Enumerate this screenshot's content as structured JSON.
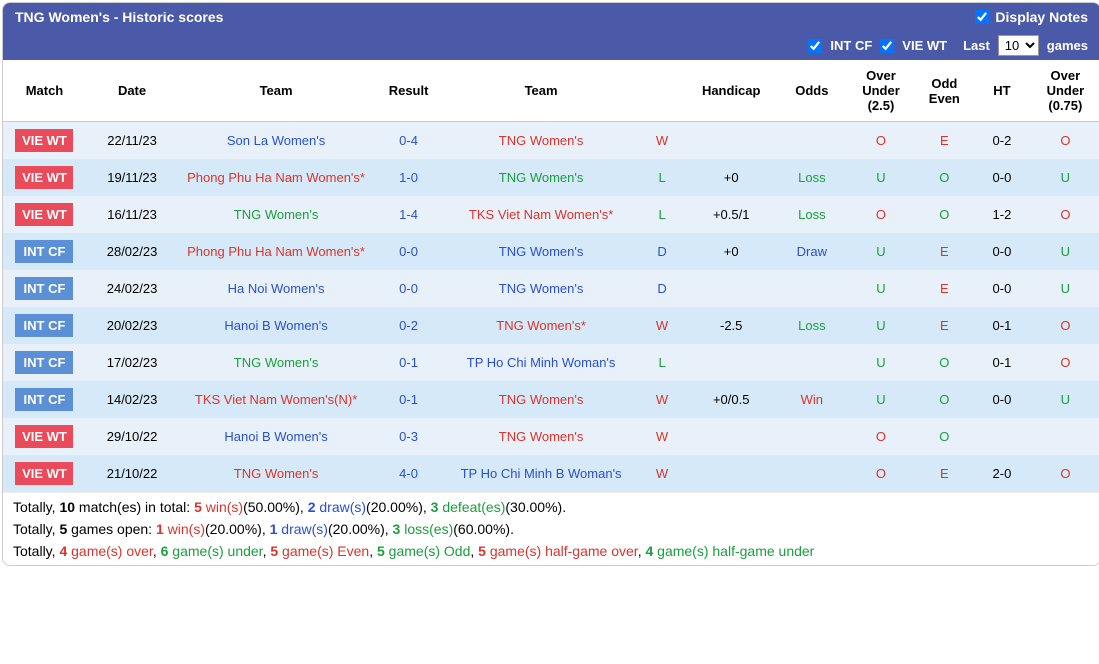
{
  "header": {
    "title": "TNG Women's - Historic scores",
    "display_notes": "Display Notes"
  },
  "filters": {
    "intcf": "INT CF",
    "viewt": "VIE WT",
    "last": "Last",
    "games": "games",
    "count": "10"
  },
  "columns": [
    "Match",
    "Date",
    "Team",
    "Result",
    "Team",
    "",
    "Handicap",
    "Odds",
    "Over Under (2.5)",
    "Odd Even",
    "HT",
    "Over Under (0.75)"
  ],
  "rows": [
    {
      "badge": "VIE WT",
      "badgeCls": "badge-red",
      "date": "22/11/23",
      "team1": "Son La Women's",
      "team1Cls": "c-blue",
      "result": "0-4",
      "team2": "TNG Women's",
      "team2Cls": "c-red",
      "wld": "W",
      "wldCls": "c-red",
      "handicap": "",
      "odds": "",
      "oddsCls": "",
      "ou25": "O",
      "ou25Cls": "c-red",
      "oe": "E",
      "oeCls": "c-red",
      "ht": "0-2",
      "ou075": "O",
      "ou075Cls": "c-red"
    },
    {
      "badge": "VIE WT",
      "badgeCls": "badge-red",
      "date": "19/11/23",
      "team1": "Phong Phu Ha Nam Women's*",
      "team1Cls": "c-red",
      "result": "1-0",
      "team2": "TNG Women's",
      "team2Cls": "c-green",
      "wld": "L",
      "wldCls": "c-green",
      "handicap": "+0",
      "odds": "Loss",
      "oddsCls": "c-green",
      "ou25": "U",
      "ou25Cls": "c-green",
      "oe": "O",
      "oeCls": "c-green",
      "ht": "0-0",
      "ou075": "U",
      "ou075Cls": "c-green"
    },
    {
      "badge": "VIE WT",
      "badgeCls": "badge-red",
      "date": "16/11/23",
      "team1": "TNG Women's",
      "team1Cls": "c-green",
      "result": "1-4",
      "team2": "TKS Viet Nam Women's*",
      "team2Cls": "c-red",
      "wld": "L",
      "wldCls": "c-green",
      "handicap": "+0.5/1",
      "odds": "Loss",
      "oddsCls": "c-green",
      "ou25": "O",
      "ou25Cls": "c-red",
      "oe": "O",
      "oeCls": "c-green",
      "ht": "1-2",
      "ou075": "O",
      "ou075Cls": "c-red"
    },
    {
      "badge": "INT CF",
      "badgeCls": "badge-blue",
      "date": "28/02/23",
      "team1": "Phong Phu Ha Nam Women's*",
      "team1Cls": "c-red",
      "result": "0-0",
      "team2": "TNG Women's",
      "team2Cls": "c-blue",
      "wld": "D",
      "wldCls": "c-blue",
      "handicap": "+0",
      "odds": "Draw",
      "oddsCls": "c-blue",
      "ou25": "U",
      "ou25Cls": "c-green",
      "oe": "E",
      "oeCls": "c-red",
      "ht": "0-0",
      "ou075": "U",
      "ou075Cls": "c-green"
    },
    {
      "badge": "INT CF",
      "badgeCls": "badge-blue",
      "date": "24/02/23",
      "team1": "Ha Noi Women's",
      "team1Cls": "c-blue",
      "result": "0-0",
      "team2": "TNG Women's",
      "team2Cls": "c-blue",
      "wld": "D",
      "wldCls": "c-blue",
      "handicap": "",
      "odds": "",
      "oddsCls": "",
      "ou25": "U",
      "ou25Cls": "c-green",
      "oe": "E",
      "oeCls": "c-red",
      "ht": "0-0",
      "ou075": "U",
      "ou075Cls": "c-green"
    },
    {
      "badge": "INT CF",
      "badgeCls": "badge-blue",
      "date": "20/02/23",
      "team1": "Hanoi B Women's",
      "team1Cls": "c-blue",
      "result": "0-2",
      "team2": "TNG Women's*",
      "team2Cls": "c-red",
      "wld": "W",
      "wldCls": "c-red",
      "handicap": "-2.5",
      "odds": "Loss",
      "oddsCls": "c-green",
      "ou25": "U",
      "ou25Cls": "c-green",
      "oe": "E",
      "oeCls": "c-red",
      "ht": "0-1",
      "ou075": "O",
      "ou075Cls": "c-red"
    },
    {
      "badge": "INT CF",
      "badgeCls": "badge-blue",
      "date": "17/02/23",
      "team1": "TNG Women's",
      "team1Cls": "c-green",
      "result": "0-1",
      "team2": "TP Ho Chi Minh Woman's",
      "team2Cls": "c-blue",
      "wld": "L",
      "wldCls": "c-green",
      "handicap": "",
      "odds": "",
      "oddsCls": "",
      "ou25": "U",
      "ou25Cls": "c-green",
      "oe": "O",
      "oeCls": "c-green",
      "ht": "0-1",
      "ou075": "O",
      "ou075Cls": "c-red"
    },
    {
      "badge": "INT CF",
      "badgeCls": "badge-blue",
      "date": "14/02/23",
      "team1": "TKS Viet Nam Women's(N)*",
      "team1Cls": "c-red",
      "result": "0-1",
      "team2": "TNG Women's",
      "team2Cls": "c-red",
      "wld": "W",
      "wldCls": "c-red",
      "handicap": "+0/0.5",
      "odds": "Win",
      "oddsCls": "c-red",
      "ou25": "U",
      "ou25Cls": "c-green",
      "oe": "O",
      "oeCls": "c-green",
      "ht": "0-0",
      "ou075": "U",
      "ou075Cls": "c-green"
    },
    {
      "badge": "VIE WT",
      "badgeCls": "badge-red",
      "date": "29/10/22",
      "team1": "Hanoi B Women's",
      "team1Cls": "c-blue",
      "result": "0-3",
      "team2": "TNG Women's",
      "team2Cls": "c-red",
      "wld": "W",
      "wldCls": "c-red",
      "handicap": "",
      "odds": "",
      "oddsCls": "",
      "ou25": "O",
      "ou25Cls": "c-red",
      "oe": "O",
      "oeCls": "c-green",
      "ht": "",
      "ou075": "",
      "ou075Cls": ""
    },
    {
      "badge": "VIE WT",
      "badgeCls": "badge-red",
      "date": "21/10/22",
      "team1": "TNG Women's",
      "team1Cls": "c-red",
      "result": "4-0",
      "team2": "TP Ho Chi Minh B Woman's",
      "team2Cls": "c-blue",
      "wld": "W",
      "wldCls": "c-red",
      "handicap": "",
      "odds": "",
      "oddsCls": "",
      "ou25": "O",
      "ou25Cls": "c-red",
      "oe": "E",
      "oeCls": "c-red",
      "ht": "2-0",
      "ou075": "O",
      "ou075Cls": "c-red"
    }
  ],
  "summary": {
    "line1": {
      "pre": "Totally, ",
      "b1": "10",
      "t1": " match(es) in total: ",
      "r1": "5",
      "r1t": " win(s)",
      "r1p": "(50.00%)",
      "c1": ", ",
      "b2": "2",
      "b2t": " draw(s)",
      "b2p": "(20.00%)",
      "c2": ", ",
      "g1": "3",
      "g1t": " defeat(es)",
      "g1p": "(30.00%)",
      "end": "."
    },
    "line2": {
      "pre": "Totally, ",
      "b1": "5",
      "t1": " games open: ",
      "r1": "1",
      "r1t": " win(s)",
      "r1p": "(20.00%)",
      "c1": ", ",
      "b2": "1",
      "b2t": " draw(s)",
      "b2p": "(20.00%)",
      "c2": ", ",
      "g1": "3",
      "g1t": " loss(es)",
      "g1p": "(60.00%)",
      "end": "."
    },
    "line3": {
      "pre": "Totally, ",
      "r1": "4",
      "r1t": " game(s) over",
      "c1": ", ",
      "g1": "6",
      "g1t": " game(s) under",
      "c2": ", ",
      "r2": "5",
      "r2t": " game(s) Even",
      "c3": ", ",
      "g2": "5",
      "g2t": " game(s) Odd",
      "c4": ", ",
      "r3": "5",
      "r3t": " game(s) half-game over",
      "c5": ", ",
      "g3": "4",
      "g3t": " game(s) half-game under"
    }
  }
}
